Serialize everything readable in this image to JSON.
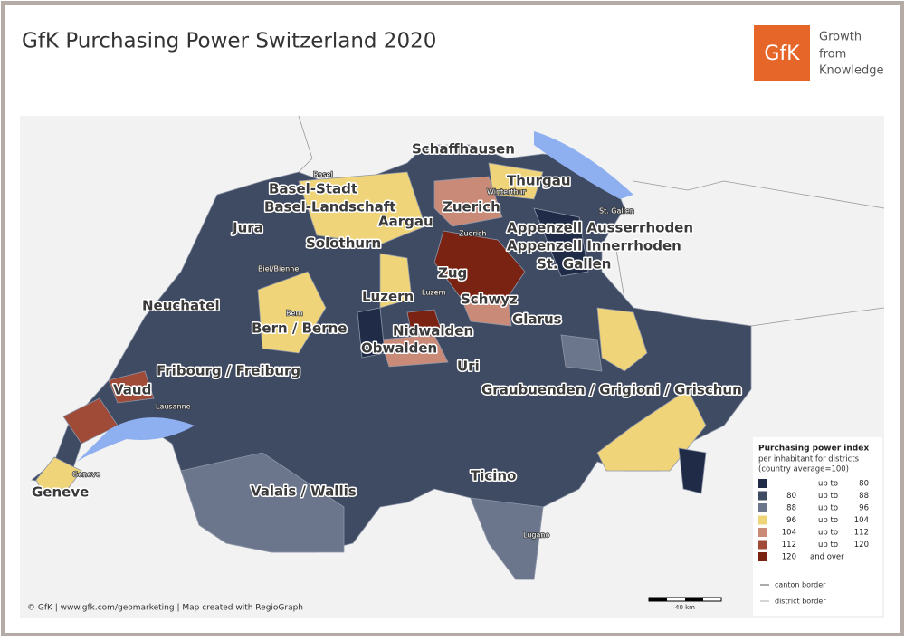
{
  "header": {
    "title": "GfK Purchasing Power Switzerland 2020"
  },
  "logo": {
    "mark": "GfK",
    "tagline": [
      "Growth",
      "from",
      "Knowledge"
    ]
  },
  "map": {
    "cantons": [
      "Schaffhausen",
      "Thurgau",
      "Basel-Stadt",
      "Basel-Landschaft",
      "Zuerich",
      "Appenzell Ausserrhoden",
      "Appenzell Innerrhoden",
      "St. Gallen",
      "Jura",
      "Aargau",
      "Solothurn",
      "Zug",
      "Schwyz",
      "Luzern",
      "Neuchatel",
      "Bern / Berne",
      "Nidwalden",
      "Glarus",
      "Obwalden",
      "Uri",
      "Fribourg / Freiburg",
      "Vaud",
      "Graubuenden / Grigioni / Grischun",
      "Ticino",
      "Geneve",
      "Valais / Wallis"
    ],
    "cities": [
      "Basel",
      "Winterthur",
      "St. Gallen",
      "Zuerich",
      "Biel/Bienne",
      "Bern",
      "Luzern",
      "Lausanne",
      "Geneve",
      "Lugano"
    ],
    "scale": "40 km"
  },
  "legend": {
    "title": "Purchasing power index",
    "subtitle": [
      "per inhabitant for districts",
      "(country average=100)"
    ],
    "classes": [
      {
        "label": "up to",
        "to": 80,
        "color": "#1f2b47"
      },
      {
        "from": 80,
        "label": "up to",
        "to": 88,
        "color": "#3f4a63"
      },
      {
        "from": 88,
        "label": "up to",
        "to": 96,
        "color": "#6b768c"
      },
      {
        "from": 96,
        "label": "up to",
        "to": 104,
        "color": "#efd47a"
      },
      {
        "from": 104,
        "label": "up to",
        "to": 112,
        "color": "#c98b78"
      },
      {
        "from": 112,
        "label": "up to",
        "to": 120,
        "color": "#a04a38"
      },
      {
        "from": 120,
        "label": "and over",
        "color": "#7b2312"
      }
    ],
    "borders": [
      "canton border",
      "district border"
    ]
  },
  "footer": "© GfK | www.gfk.com/geomarketing | Map created with RegioGraph"
}
